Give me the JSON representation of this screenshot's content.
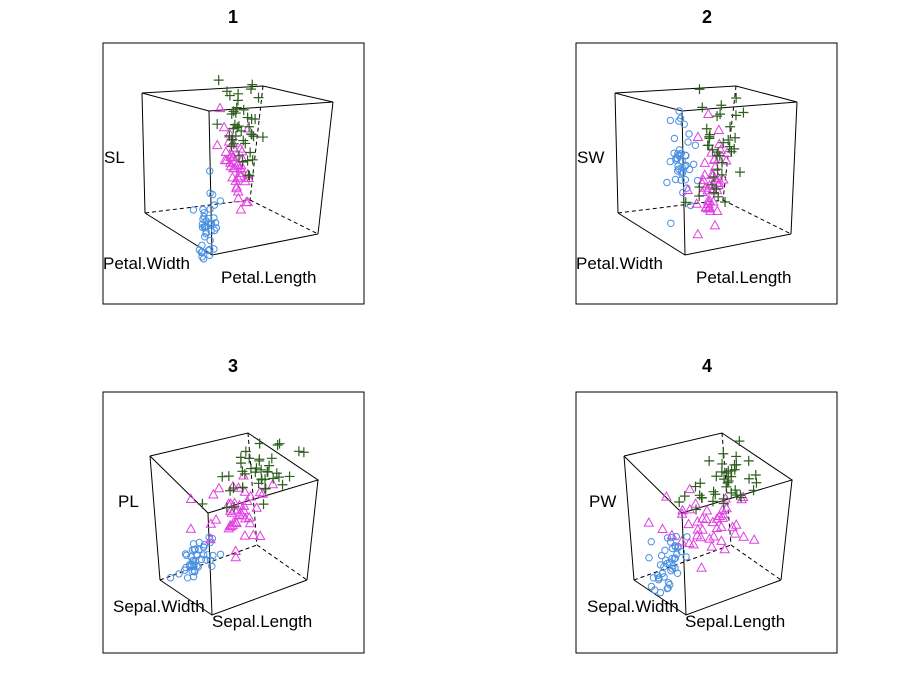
{
  "chart_data": [
    {
      "type": "scatter",
      "title": "1",
      "vertical_label": "SL",
      "depth_label": "Petal.Width",
      "horizontal_label": "Petal.Length",
      "symbols": [
        {
          "marker": "circle",
          "color": "#4a90e2"
        },
        {
          "marker": "triangle",
          "color": "#e040e0"
        },
        {
          "marker": "plus",
          "color": "#2e5e1e"
        }
      ]
    },
    {
      "type": "scatter",
      "title": "2",
      "vertical_label": "SW",
      "depth_label": "Petal.Width",
      "horizontal_label": "Petal.Length",
      "symbols": [
        {
          "marker": "circle",
          "color": "#4a90e2"
        },
        {
          "marker": "triangle",
          "color": "#e040e0"
        },
        {
          "marker": "plus",
          "color": "#2e5e1e"
        }
      ]
    },
    {
      "type": "scatter",
      "title": "3",
      "vertical_label": "PL",
      "depth_label": "Sepal.Width",
      "horizontal_label": "Sepal.Length",
      "symbols": [
        {
          "marker": "circle",
          "color": "#4a90e2"
        },
        {
          "marker": "triangle",
          "color": "#e040e0"
        },
        {
          "marker": "plus",
          "color": "#2e5e1e"
        }
      ]
    },
    {
      "type": "scatter",
      "title": "4",
      "vertical_label": "PW",
      "depth_label": "Sepal.Width",
      "horizontal_label": "Sepal.Length",
      "symbols": [
        {
          "marker": "circle",
          "color": "#4a90e2"
        },
        {
          "marker": "triangle",
          "color": "#e040e0"
        },
        {
          "marker": "plus",
          "color": "#2e5e1e"
        }
      ]
    }
  ]
}
